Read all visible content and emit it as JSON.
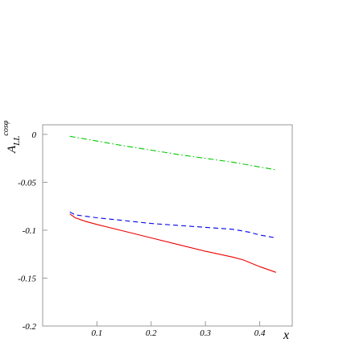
{
  "chart_data": {
    "type": "line",
    "xlabel": "x",
    "ylabel": {
      "main": "A",
      "subscript": "LL",
      "superscript": "cosφ"
    },
    "xlim": [
      0.0,
      0.46
    ],
    "ylim": [
      -0.2,
      0.01
    ],
    "x_ticks": [
      {
        "value": 0.1,
        "label": "0.1"
      },
      {
        "value": 0.2,
        "label": "0.2"
      },
      {
        "value": 0.3,
        "label": "0.3"
      },
      {
        "value": 0.4,
        "label": "0.4"
      }
    ],
    "y_ticks": [
      {
        "value": 0,
        "label": "0"
      },
      {
        "value": -0.05,
        "label": "-0.05"
      },
      {
        "value": -0.1,
        "label": "-0.1"
      },
      {
        "value": -0.15,
        "label": "-0.15"
      },
      {
        "value": -0.2,
        "label": "-0.2"
      }
    ],
    "grid": false,
    "legend": "none",
    "series": [
      {
        "style": "dash-dot",
        "color": "#00cc00",
        "x": [
          0.05,
          0.1,
          0.15,
          0.2,
          0.25,
          0.3,
          0.35,
          0.4,
          0.43
        ],
        "values": [
          -0.002,
          -0.007,
          -0.012,
          -0.0165,
          -0.021,
          -0.025,
          -0.029,
          -0.034,
          -0.037
        ]
      },
      {
        "style": "dashed",
        "color": "#0000ee",
        "x": [
          0.05,
          0.06,
          0.1,
          0.15,
          0.2,
          0.25,
          0.3,
          0.35,
          0.38,
          0.4,
          0.43
        ],
        "values": [
          -0.081,
          -0.084,
          -0.087,
          -0.09,
          -0.093,
          -0.095,
          -0.097,
          -0.099,
          -0.102,
          -0.105,
          -0.108
        ]
      },
      {
        "style": "solid",
        "color": "#ee0000",
        "x": [
          0.05,
          0.06,
          0.08,
          0.1,
          0.15,
          0.2,
          0.25,
          0.3,
          0.35,
          0.37,
          0.4,
          0.43
        ],
        "values": [
          -0.083,
          -0.087,
          -0.091,
          -0.094,
          -0.101,
          -0.108,
          -0.115,
          -0.122,
          -0.128,
          -0.131,
          -0.138,
          -0.144
        ]
      }
    ]
  }
}
